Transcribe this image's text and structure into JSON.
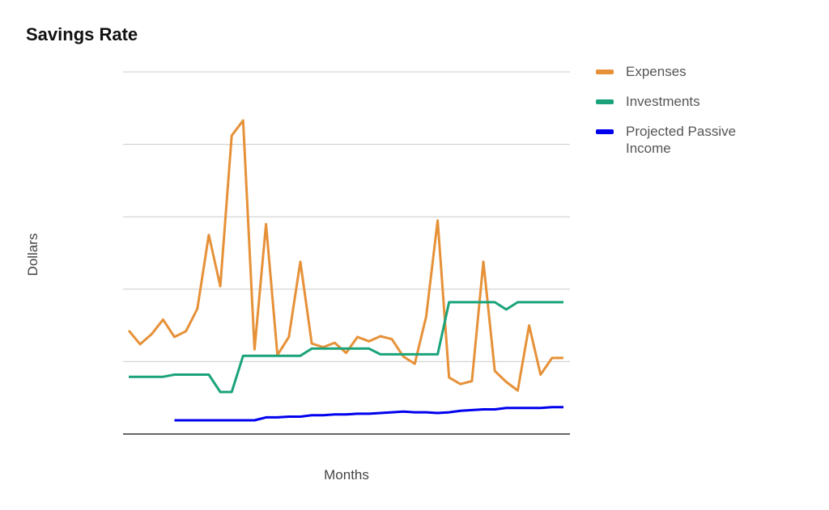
{
  "chart_data": {
    "type": "line",
    "title": "Savings Rate",
    "xlabel": "Months",
    "ylabel": "Dollars",
    "ylim": [
      0,
      5
    ],
    "grid": true,
    "legend_position": "right",
    "x": [
      1,
      2,
      3,
      4,
      5,
      6,
      7,
      8,
      9,
      10,
      11,
      12,
      13,
      14,
      15,
      16,
      17,
      18,
      19,
      20,
      21,
      22,
      23,
      24,
      25,
      26,
      27,
      28,
      29,
      30,
      31,
      32,
      33,
      34,
      35,
      36,
      37,
      38,
      39
    ],
    "series": [
      {
        "name": "Expenses",
        "color": "#e69138",
        "values": [
          1.43,
          1.24,
          1.38,
          1.58,
          1.34,
          1.42,
          1.73,
          2.75,
          2.04,
          4.12,
          4.33,
          1.17,
          2.9,
          1.09,
          1.34,
          2.38,
          1.25,
          1.2,
          1.26,
          1.12,
          1.34,
          1.28,
          1.35,
          1.31,
          1.07,
          0.97,
          1.62,
          2.95,
          0.78,
          0.69,
          0.73,
          2.38,
          0.87,
          0.72,
          0.6,
          1.5,
          0.82,
          1.05,
          1.05
        ]
      },
      {
        "name": "Investments",
        "color": "#1aa37a",
        "values": [
          0.79,
          0.79,
          0.79,
          0.79,
          0.82,
          0.82,
          0.82,
          0.82,
          0.58,
          0.58,
          1.08,
          1.08,
          1.08,
          1.08,
          1.08,
          1.08,
          1.18,
          1.18,
          1.18,
          1.18,
          1.18,
          1.18,
          1.1,
          1.1,
          1.1,
          1.1,
          1.1,
          1.1,
          1.82,
          1.82,
          1.82,
          1.82,
          1.82,
          1.72,
          1.82,
          1.82,
          1.82,
          1.82,
          1.82
        ]
      },
      {
        "name": "Projected Passive Income",
        "color": "#0000ee",
        "values": [
          null,
          null,
          null,
          null,
          0.19,
          0.19,
          0.19,
          0.19,
          0.19,
          0.19,
          0.19,
          0.19,
          0.23,
          0.23,
          0.24,
          0.24,
          0.26,
          0.26,
          0.27,
          0.27,
          0.28,
          0.28,
          0.29,
          0.3,
          0.31,
          0.3,
          0.3,
          0.29,
          0.3,
          0.32,
          0.33,
          0.34,
          0.34,
          0.36,
          0.36,
          0.36,
          0.36,
          0.37,
          0.37
        ]
      }
    ]
  }
}
